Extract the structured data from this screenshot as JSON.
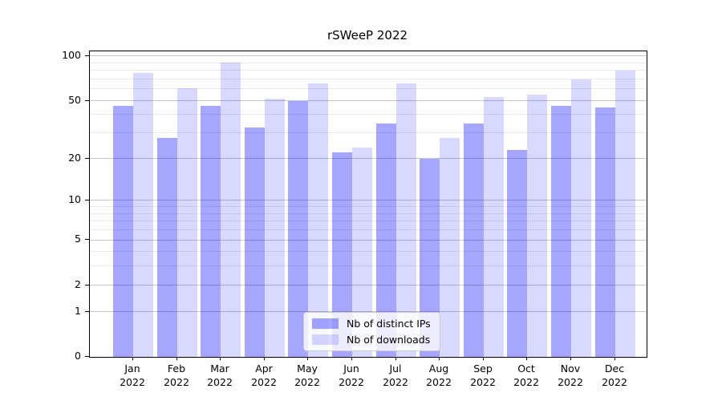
{
  "title": "rSWeeP 2022",
  "chart_data": {
    "type": "bar",
    "title": "rSWeeP 2022",
    "categories": [
      "Jan",
      "Feb",
      "Mar",
      "Apr",
      "May",
      "Jun",
      "Jul",
      "Aug",
      "Sep",
      "Oct",
      "Nov",
      "Dec"
    ],
    "x_tick_year": "2022",
    "series": [
      {
        "name": "Nb of distinct IPs",
        "color": "rgba(0,0,255,0.35)",
        "color_hex_on_white": "#a6a6ff",
        "values": [
          46,
          28,
          46,
          33,
          50,
          22,
          35,
          20,
          35,
          23,
          46,
          45
        ]
      },
      {
        "name": "Nb of downloads",
        "color": "rgba(0,0,255,0.15)",
        "color_hex_on_white": "#d9d9ff",
        "values": [
          77,
          61,
          91,
          52,
          66,
          24,
          66,
          28,
          53,
          55,
          70,
          80
        ]
      }
    ],
    "yscale": "log1p",
    "ylim": [
      0,
      108
    ],
    "y_major_ticks": [
      100,
      50,
      20,
      10,
      5,
      2,
      1,
      0
    ],
    "y_minor_ticks": [
      3,
      4,
      6,
      7,
      8,
      9,
      30,
      40,
      60,
      70,
      80,
      90
    ],
    "xlabel": "",
    "ylabel": "",
    "grid": "horizontal",
    "legend_position": "lower center"
  }
}
